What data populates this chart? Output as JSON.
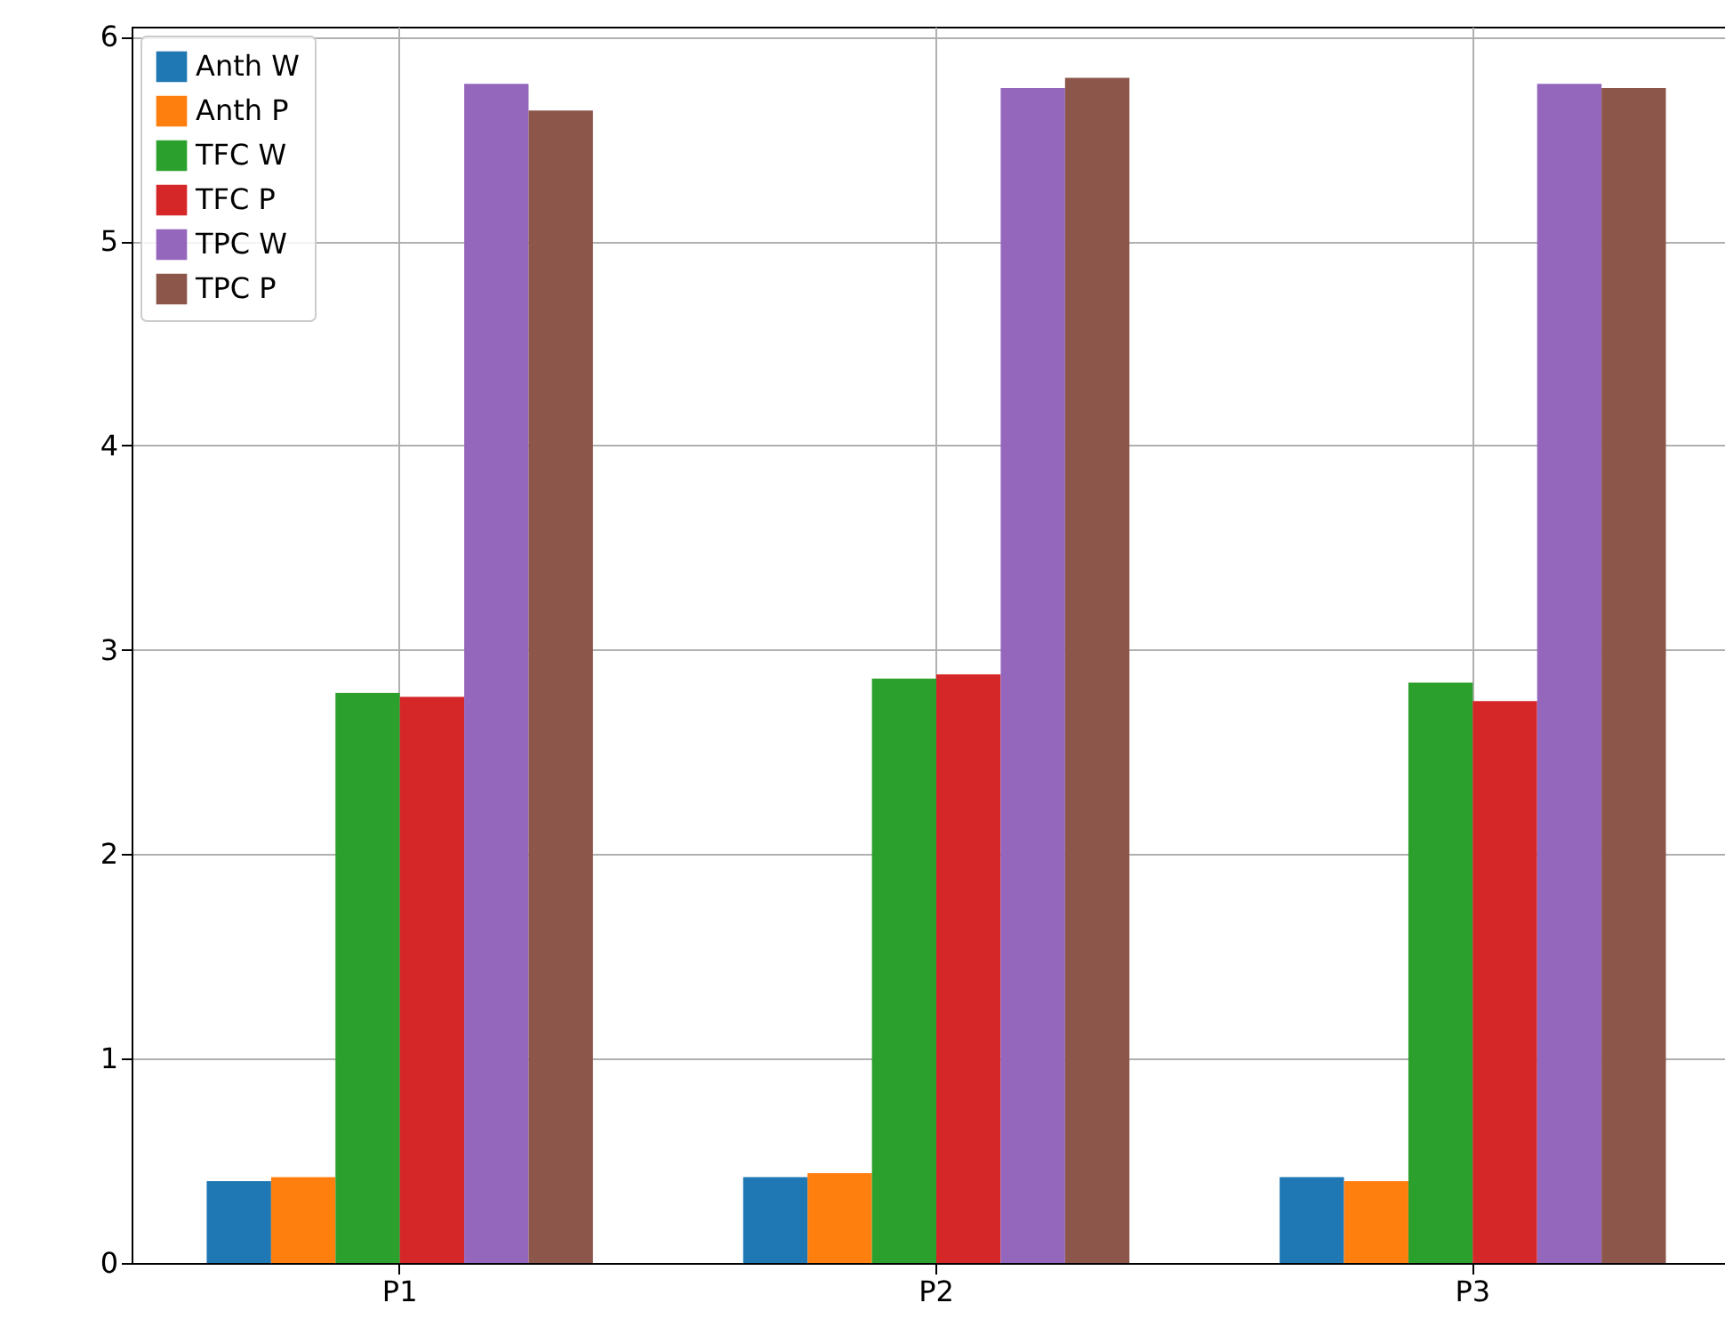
{
  "chart_data": {
    "type": "bar",
    "categories": [
      "P1",
      "P2",
      "P3"
    ],
    "series": [
      {
        "name": "Anth W",
        "color": "#1f77b4",
        "values": [
          0.4,
          0.42,
          0.42
        ]
      },
      {
        "name": "Anth P",
        "color": "#ff7f0e",
        "values": [
          0.42,
          0.44,
          0.4
        ]
      },
      {
        "name": "TFC W",
        "color": "#2ca02c",
        "values": [
          2.79,
          2.86,
          2.84
        ]
      },
      {
        "name": "TFC P",
        "color": "#d62728",
        "values": [
          2.77,
          2.88,
          2.75
        ]
      },
      {
        "name": "TPC W",
        "color": "#9467bd",
        "values": [
          5.77,
          5.75,
          5.77
        ]
      },
      {
        "name": "TPC P",
        "color": "#8c564b",
        "values": [
          5.64,
          5.8,
          5.75
        ]
      }
    ],
    "ylim": [
      0,
      6.05
    ],
    "yticks": [
      0,
      1,
      2,
      3,
      4,
      5,
      6
    ],
    "grid": true,
    "legend": "top left"
  }
}
